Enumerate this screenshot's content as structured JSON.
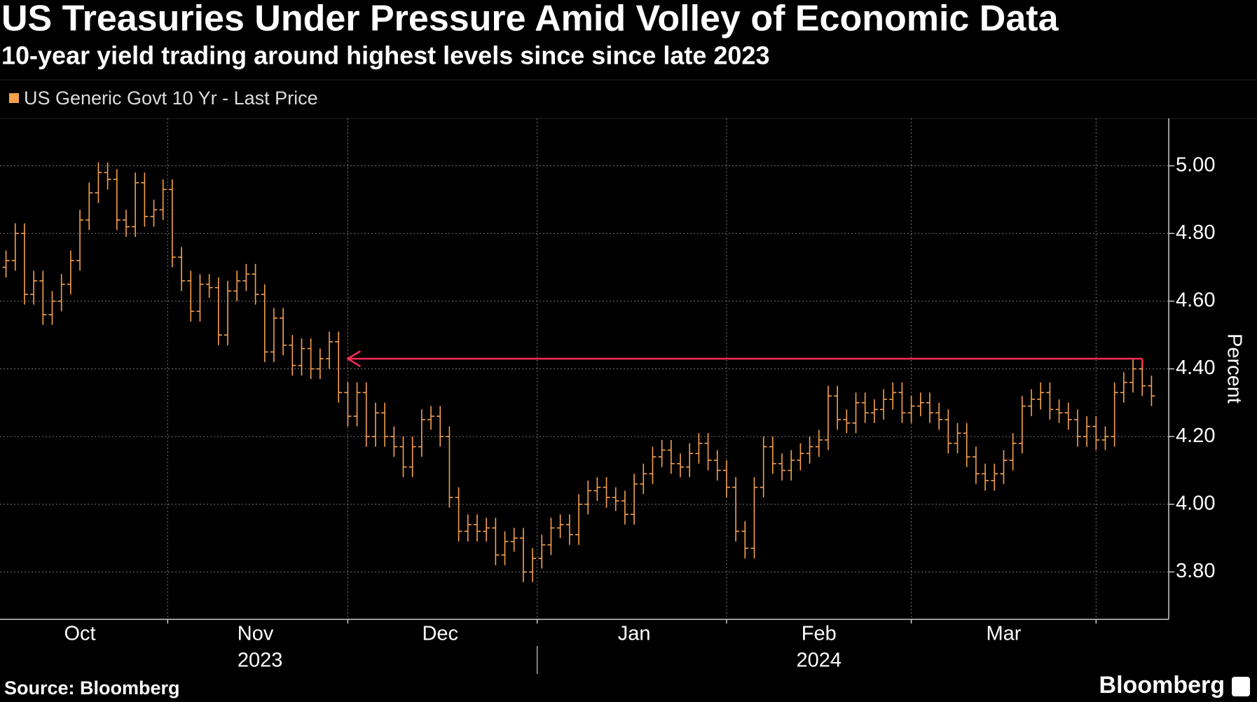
{
  "chart_data": {
    "type": "ohlc",
    "title": "US Treasuries Under Pressure Amid Volley of Economic Data",
    "subtitle": "10-year yield trading around highest levels since since late 2023",
    "y_axis_label": "Percent",
    "source": "Source: Bloomberg",
    "logo": "Bloomberg",
    "grid": true,
    "categories": [
      null,
      null,
      null,
      null,
      null,
      null,
      null,
      null,
      "Oct",
      null,
      null,
      null,
      null,
      null,
      null,
      null,
      null,
      null,
      null,
      null,
      null,
      null,
      null,
      null,
      null,
      null,
      null,
      "Nov",
      null,
      null,
      null,
      null,
      null,
      null,
      null,
      null,
      null,
      null,
      null,
      null,
      null,
      null,
      null,
      null,
      null,
      null,
      null,
      "Dec",
      null,
      null,
      null,
      null,
      null,
      null,
      null,
      null,
      null,
      null,
      null,
      null,
      null,
      null,
      null,
      null,
      null,
      null,
      null,
      null,
      "Jan",
      null,
      null,
      null,
      null,
      null,
      null,
      null,
      null,
      null,
      null,
      null,
      null,
      null,
      null,
      null,
      null,
      null,
      null,
      null,
      "Feb",
      null,
      null,
      null,
      null,
      null,
      null,
      null,
      null,
      null,
      null,
      null,
      null,
      null,
      null,
      null,
      null,
      null,
      null,
      null,
      "Mar",
      null,
      null,
      null,
      null,
      null,
      null,
      null,
      null,
      null,
      null,
      null,
      null,
      null,
      null,
      null,
      null
    ],
    "year_labels": [
      "2023",
      "2024"
    ],
    "series": [
      {
        "name": "US Generic Govt 10 Yr - Last Price",
        "color": "#f6a14c",
        "open": [
          4.7,
          4.72,
          4.8,
          4.62,
          4.66,
          4.56,
          4.6,
          4.65,
          4.72,
          4.84,
          4.92,
          4.98,
          4.96,
          4.84,
          4.82,
          4.95,
          4.85,
          4.87,
          4.93,
          4.73,
          4.66,
          4.57,
          4.65,
          4.64,
          4.5,
          4.63,
          4.66,
          4.68,
          4.62,
          4.45,
          4.55,
          4.47,
          4.41,
          4.46,
          4.4,
          4.43,
          4.48,
          4.33,
          4.26,
          4.33,
          4.2,
          4.27,
          4.2,
          4.17,
          4.11,
          4.17,
          4.25,
          4.26,
          4.2,
          4.02,
          3.92,
          3.94,
          3.92,
          3.93,
          3.85,
          3.89,
          3.9,
          3.8,
          3.84,
          3.88,
          3.93,
          3.94,
          3.91,
          4.0,
          4.04,
          4.05,
          4.02,
          4.01,
          3.97,
          4.06,
          4.09,
          4.14,
          4.16,
          4.12,
          4.11,
          4.15,
          4.18,
          4.13,
          4.1,
          4.05,
          3.92,
          3.87,
          4.05,
          4.17,
          4.12,
          4.1,
          4.13,
          4.15,
          4.17,
          4.19,
          4.32,
          4.25,
          4.24,
          4.3,
          4.27,
          4.28,
          4.31,
          4.33,
          4.27,
          4.29,
          4.3,
          4.27,
          4.25,
          4.18,
          4.21,
          4.14,
          4.09,
          4.07,
          4.09,
          4.13,
          4.18,
          4.29,
          4.31,
          4.33,
          4.28,
          4.27,
          4.25,
          4.2,
          4.23,
          4.19,
          4.2,
          4.33,
          4.36,
          4.4,
          4.35
        ],
        "high": [
          4.75,
          4.83,
          4.83,
          4.69,
          4.69,
          4.63,
          4.68,
          4.75,
          4.87,
          4.95,
          5.01,
          5.01,
          4.99,
          4.87,
          4.98,
          4.98,
          4.9,
          4.96,
          4.96,
          4.76,
          4.69,
          4.68,
          4.68,
          4.67,
          4.66,
          4.69,
          4.71,
          4.71,
          4.65,
          4.58,
          4.58,
          4.5,
          4.49,
          4.49,
          4.46,
          4.51,
          4.51,
          4.36,
          4.36,
          4.36,
          4.3,
          4.3,
          4.23,
          4.2,
          4.2,
          4.28,
          4.29,
          4.29,
          4.23,
          4.05,
          3.97,
          3.97,
          3.96,
          3.96,
          3.92,
          3.93,
          3.93,
          3.87,
          3.91,
          3.96,
          3.97,
          3.97,
          4.03,
          4.07,
          4.08,
          4.08,
          4.05,
          4.04,
          4.09,
          4.12,
          4.17,
          4.19,
          4.19,
          4.15,
          4.18,
          4.21,
          4.21,
          4.16,
          4.13,
          4.08,
          3.95,
          4.08,
          4.2,
          4.2,
          4.15,
          4.16,
          4.18,
          4.2,
          4.22,
          4.35,
          4.35,
          4.28,
          4.33,
          4.33,
          4.31,
          4.34,
          4.36,
          4.36,
          4.32,
          4.33,
          4.33,
          4.3,
          4.28,
          4.24,
          4.24,
          4.17,
          4.12,
          4.12,
          4.16,
          4.21,
          4.32,
          4.34,
          4.36,
          4.36,
          4.31,
          4.3,
          4.28,
          4.26,
          4.26,
          4.23,
          4.36,
          4.39,
          4.43,
          4.43,
          4.38
        ],
        "low": [
          4.67,
          4.69,
          4.59,
          4.59,
          4.53,
          4.53,
          4.57,
          4.62,
          4.69,
          4.81,
          4.89,
          4.93,
          4.81,
          4.79,
          4.79,
          4.82,
          4.82,
          4.84,
          4.7,
          4.63,
          4.54,
          4.54,
          4.61,
          4.47,
          4.47,
          4.6,
          4.63,
          4.59,
          4.42,
          4.42,
          4.44,
          4.38,
          4.38,
          4.37,
          4.37,
          4.4,
          4.3,
          4.23,
          4.23,
          4.17,
          4.17,
          4.17,
          4.14,
          4.08,
          4.08,
          4.14,
          4.22,
          4.17,
          3.99,
          3.89,
          3.89,
          3.89,
          3.89,
          3.82,
          3.82,
          3.86,
          3.77,
          3.77,
          3.81,
          3.85,
          3.9,
          3.88,
          3.88,
          3.97,
          4.01,
          3.99,
          3.98,
          3.94,
          3.94,
          4.03,
          4.06,
          4.11,
          4.09,
          4.08,
          4.08,
          4.12,
          4.1,
          4.07,
          4.02,
          3.89,
          3.84,
          3.84,
          4.02,
          4.09,
          4.07,
          4.07,
          4.1,
          4.12,
          4.14,
          4.16,
          4.22,
          4.21,
          4.21,
          4.24,
          4.24,
          4.25,
          4.28,
          4.24,
          4.24,
          4.26,
          4.24,
          4.22,
          4.15,
          4.15,
          4.11,
          4.06,
          4.04,
          4.04,
          4.06,
          4.1,
          4.15,
          4.26,
          4.28,
          4.25,
          4.24,
          4.22,
          4.17,
          4.17,
          4.16,
          4.16,
          4.17,
          4.3,
          4.33,
          4.32,
          4.29
        ],
        "close": [
          4.72,
          4.8,
          4.62,
          4.66,
          4.56,
          4.6,
          4.65,
          4.72,
          4.84,
          4.92,
          4.98,
          4.96,
          4.84,
          4.82,
          4.95,
          4.85,
          4.87,
          4.93,
          4.73,
          4.66,
          4.57,
          4.65,
          4.64,
          4.5,
          4.63,
          4.66,
          4.68,
          4.62,
          4.45,
          4.55,
          4.47,
          4.41,
          4.46,
          4.4,
          4.43,
          4.48,
          4.33,
          4.26,
          4.33,
          4.2,
          4.27,
          4.2,
          4.17,
          4.11,
          4.17,
          4.25,
          4.26,
          4.2,
          4.02,
          3.92,
          3.94,
          3.92,
          3.93,
          3.85,
          3.89,
          3.9,
          3.8,
          3.84,
          3.88,
          3.93,
          3.94,
          3.91,
          4.0,
          4.04,
          4.05,
          4.02,
          4.01,
          3.97,
          4.06,
          4.09,
          4.14,
          4.16,
          4.12,
          4.11,
          4.15,
          4.18,
          4.13,
          4.1,
          4.05,
          3.92,
          3.87,
          4.05,
          4.17,
          4.12,
          4.1,
          4.13,
          4.15,
          4.17,
          4.19,
          4.32,
          4.25,
          4.24,
          4.3,
          4.27,
          4.28,
          4.31,
          4.33,
          4.27,
          4.29,
          4.3,
          4.27,
          4.25,
          4.18,
          4.21,
          4.14,
          4.09,
          4.07,
          4.09,
          4.13,
          4.18,
          4.29,
          4.31,
          4.33,
          4.28,
          4.27,
          4.25,
          4.2,
          4.23,
          4.19,
          4.2,
          4.33,
          4.36,
          4.4,
          4.35,
          4.32
        ]
      }
    ],
    "reference_arrow": {
      "value": 4.43,
      "color": "#ff2d55"
    },
    "ylim": [
      3.66,
      5.14
    ],
    "yticks": [
      {
        "value": 3.8,
        "label": "3.80"
      },
      {
        "value": 4,
        "label": "4.00"
      },
      {
        "value": 4.2,
        "label": "4.20"
      },
      {
        "value": 4.4,
        "label": "4.40"
      },
      {
        "value": 4.6,
        "label": "4.60"
      },
      {
        "value": 4.8,
        "label": "4.80"
      },
      {
        "value": 5,
        "label": "5.00"
      }
    ]
  }
}
